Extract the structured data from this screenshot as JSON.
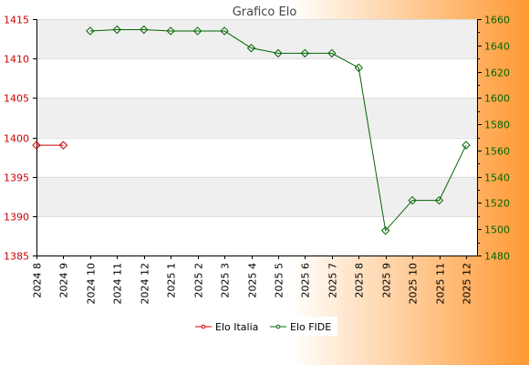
{
  "chart_data": {
    "type": "line",
    "title": "Grafico Elo",
    "categories": [
      "2024 8",
      "2024 9",
      "2024 10",
      "2024 11",
      "2024 12",
      "2025 1",
      "2025 2",
      "2025 3",
      "2025 4",
      "2025 5",
      "2025 6",
      "2025 7",
      "2025 8",
      "2025 9",
      "2025 10",
      "2025 11",
      "2025 12"
    ],
    "y_left": {
      "range": [
        1385,
        1415
      ],
      "ticks": [
        1385,
        1390,
        1395,
        1400,
        1405,
        1410,
        1415
      ],
      "color": "#cc0000"
    },
    "y_right": {
      "range": [
        1480,
        1660
      ],
      "ticks": [
        1480,
        1500,
        1520,
        1540,
        1560,
        1580,
        1600,
        1620,
        1640,
        1660
      ],
      "color": "#006600"
    },
    "series": [
      {
        "name": "Elo Italia",
        "axis": "left",
        "color": "#cc0000",
        "values": [
          1399,
          1399,
          null,
          null,
          null,
          null,
          null,
          null,
          null,
          null,
          null,
          null,
          null,
          null,
          null,
          null,
          null
        ]
      },
      {
        "name": "Elo FIDE",
        "axis": "right",
        "color": "#006600",
        "values": [
          null,
          null,
          1651,
          1652,
          1652,
          1651,
          1651,
          1651,
          1638,
          1634,
          1634,
          1634,
          1623,
          1499,
          1522,
          1522,
          1564
        ]
      }
    ],
    "grid": true,
    "legend": "bottom"
  },
  "colors": {
    "gradient_start": "#ffffff",
    "gradient_end": "#ff9933",
    "band": "#efefef"
  }
}
